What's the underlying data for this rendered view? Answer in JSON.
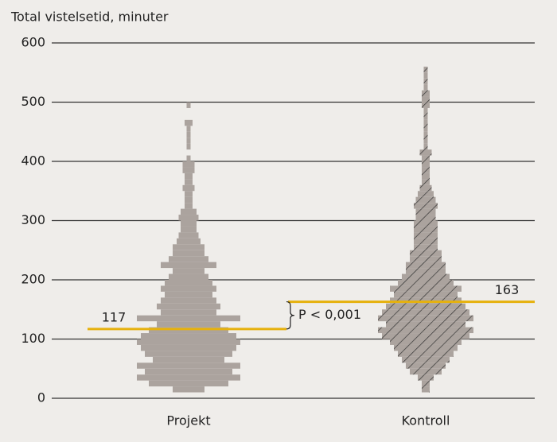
{
  "chart_data": {
    "type": "histogram",
    "title": "Total vistelsetid, minuter",
    "ylim": [
      0,
      600
    ],
    "yticks": [
      0,
      100,
      200,
      300,
      400,
      500,
      600
    ],
    "grid": true,
    "annotation": "P < 0,001",
    "median_color": "#e6b10d",
    "series": [
      {
        "name": "Projekt",
        "color": "#aba39e",
        "hatch": false,
        "median": 117,
        "bins": [
          10,
          20,
          30,
          40,
          50,
          60,
          70,
          80,
          90,
          100,
          110,
          120,
          130,
          140,
          150,
          160,
          170,
          180,
          190,
          200,
          210,
          220,
          230,
          240,
          250,
          260,
          270,
          280,
          290,
          300,
          310,
          320,
          330,
          340,
          350,
          360,
          370,
          380,
          390,
          400,
          410,
          420,
          430,
          440,
          450,
          460,
          470,
          480,
          490,
          500
        ],
        "counts": [
          8,
          20,
          26,
          22,
          26,
          18,
          22,
          24,
          26,
          24,
          20,
          16,
          26,
          14,
          16,
          14,
          12,
          14,
          12,
          10,
          8,
          14,
          10,
          8,
          8,
          6,
          5,
          4,
          4,
          5,
          4,
          2,
          2,
          2,
          3,
          2,
          2,
          3,
          3,
          1,
          0,
          1,
          1,
          1,
          1,
          2,
          0,
          0,
          1
        ]
      },
      {
        "name": "Kontroll",
        "color": "#aba39e",
        "hatch": true,
        "median": 163,
        "bins": [
          10,
          20,
          30,
          40,
          50,
          60,
          70,
          80,
          90,
          100,
          110,
          120,
          130,
          140,
          150,
          160,
          170,
          180,
          190,
          200,
          210,
          220,
          230,
          240,
          250,
          260,
          270,
          280,
          290,
          300,
          310,
          320,
          330,
          340,
          350,
          360,
          370,
          380,
          390,
          400,
          410,
          420,
          430,
          440,
          450,
          460,
          470,
          480,
          490,
          500,
          510,
          520,
          530,
          540,
          550,
          560
        ],
        "counts": [
          2,
          2,
          4,
          8,
          10,
          12,
          14,
          16,
          18,
          22,
          24,
          20,
          24,
          22,
          20,
          18,
          16,
          18,
          14,
          12,
          10,
          10,
          8,
          8,
          6,
          6,
          6,
          6,
          6,
          5,
          5,
          6,
          5,
          4,
          3,
          2,
          2,
          2,
          2,
          2,
          3,
          1,
          1,
          1,
          1,
          1,
          1,
          1,
          2,
          2,
          2,
          1,
          1,
          1,
          1
        ]
      }
    ]
  }
}
